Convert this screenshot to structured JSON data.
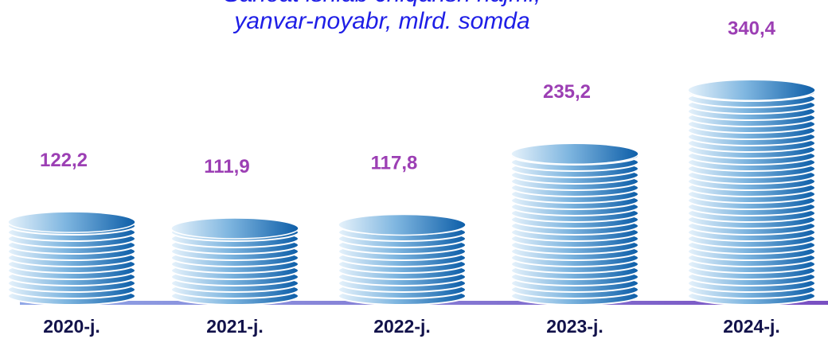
{
  "chart_data": {
    "type": "bar",
    "title": "Sanoat ishlab chiqarish hajmi,",
    "subtitle": "yanvar-noyabr, mlrd. somda",
    "categories": [
      "2020-j.",
      "2021-j.",
      "2022-j.",
      "2023-j.",
      "2024-j."
    ],
    "values": [
      122.2,
      111.9,
      117.8,
      235.2,
      340.4
    ],
    "value_labels": [
      "122,2",
      "111,9",
      "117,8",
      "235,2",
      "340,4"
    ],
    "color": "#1f6fc0"
  }
}
